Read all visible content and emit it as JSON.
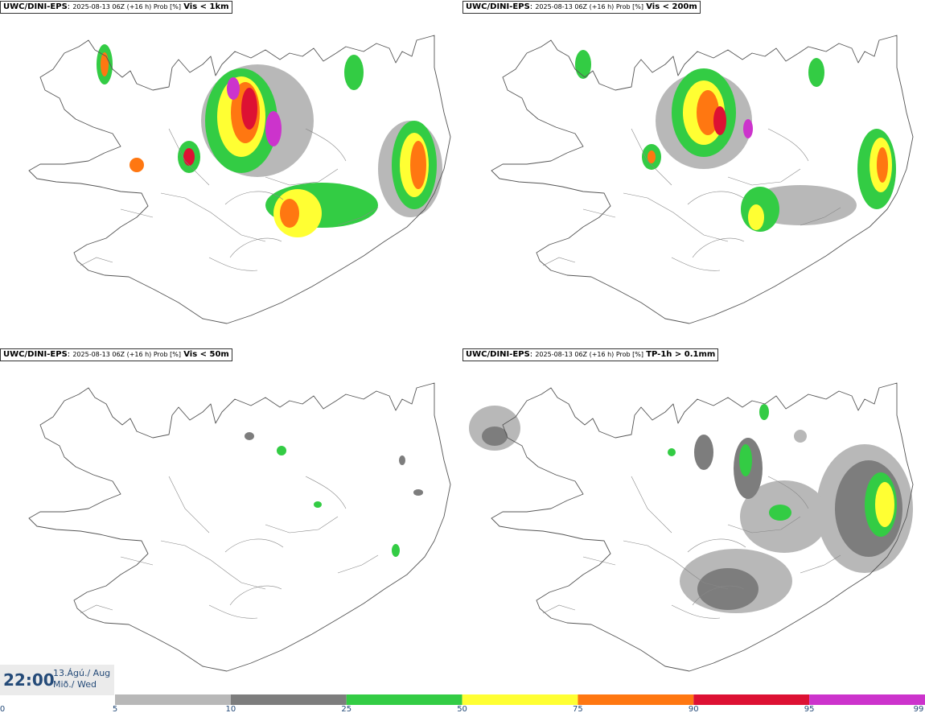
{
  "panels": [
    {
      "id": "p1",
      "model": "UWC/DINI-EPS",
      "run": "2025-08-13 06Z (+16 h) Prob [%]",
      "variable": "Vis < 1km"
    },
    {
      "id": "p2",
      "model": "UWC/DINI-EPS",
      "run": "2025-08-13 06Z (+16 h) Prob [%]",
      "variable": "Vis < 200m"
    },
    {
      "id": "p3",
      "model": "UWC/DINI-EPS",
      "run": "2025-08-13 06Z (+16 h) Prob [%]",
      "variable": "Vis < 50m"
    },
    {
      "id": "p4",
      "model": "UWC/DINI-EPS",
      "run": "2025-08-13 06Z (+16 h) Prob [%]",
      "variable": "TP-1h > 0.1mm"
    }
  ],
  "valid": {
    "time": "22:00",
    "date_line1": "13.Ágú./ Aug",
    "date_line2": "Mið./ Wed"
  },
  "colorbar": {
    "ticks": [
      "0",
      "5",
      "10",
      "25",
      "50",
      "75",
      "90",
      "95",
      "99"
    ],
    "colors": [
      "#ffffff",
      "#b8b8b8",
      "#7d7d7d",
      "#33cc44",
      "#ffff33",
      "#ff7711",
      "#dd1133",
      "#cc33cc",
      "#f4c8f4"
    ]
  }
}
